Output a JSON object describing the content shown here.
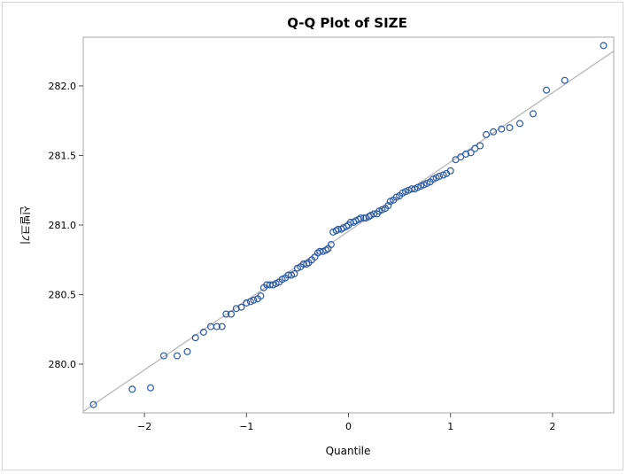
{
  "chart_data": {
    "type": "scatter",
    "title": "Q-Q Plot of SIZE",
    "xlabel": "Quantile",
    "ylabel": "신발크기",
    "xlim": [
      -2.6,
      2.6
    ],
    "ylim": [
      279.65,
      282.35
    ],
    "xticks": [
      -2,
      -1,
      0,
      1,
      2
    ],
    "xtick_labels": [
      "−2",
      "−1",
      "0",
      "1",
      "2"
    ],
    "yticks": [
      280.0,
      280.5,
      281.0,
      281.5,
      282.0
    ],
    "ytick_labels": [
      "280.0",
      "280.5",
      "281.0",
      "281.5",
      "282.0"
    ],
    "grid": false,
    "legend": "none",
    "marker_color": "#2a5aa8",
    "line_color": "#b8b8b8",
    "reference_line": {
      "x": [
        -2.6,
        2.6
      ],
      "y": [
        279.66,
        282.25
      ]
    },
    "points": [
      [
        -2.5,
        279.71
      ],
      [
        -2.12,
        279.82
      ],
      [
        -1.94,
        279.83
      ],
      [
        -1.81,
        280.06
      ],
      [
        -1.68,
        280.06
      ],
      [
        -1.58,
        280.09
      ],
      [
        -1.5,
        280.19
      ],
      [
        -1.42,
        280.23
      ],
      [
        -1.35,
        280.27
      ],
      [
        -1.29,
        280.27
      ],
      [
        -1.24,
        280.27
      ],
      [
        -1.2,
        280.36
      ],
      [
        -1.15,
        280.36
      ],
      [
        -1.1,
        280.4
      ],
      [
        -1.05,
        280.41
      ],
      [
        -1.0,
        280.44
      ],
      [
        -0.96,
        280.45
      ],
      [
        -0.93,
        280.46
      ],
      [
        -0.89,
        280.47
      ],
      [
        -0.86,
        280.49
      ],
      [
        -0.83,
        280.55
      ],
      [
        -0.8,
        280.57
      ],
      [
        -0.77,
        280.57
      ],
      [
        -0.74,
        280.57
      ],
      [
        -0.71,
        280.58
      ],
      [
        -0.68,
        280.59
      ],
      [
        -0.65,
        280.61
      ],
      [
        -0.62,
        280.62
      ],
      [
        -0.59,
        280.64
      ],
      [
        -0.56,
        280.64
      ],
      [
        -0.53,
        280.65
      ],
      [
        -0.5,
        280.69
      ],
      [
        -0.47,
        280.7
      ],
      [
        -0.44,
        280.72
      ],
      [
        -0.41,
        280.72
      ],
      [
        -0.39,
        280.73
      ],
      [
        -0.36,
        280.75
      ],
      [
        -0.33,
        280.77
      ],
      [
        -0.3,
        280.8
      ],
      [
        -0.28,
        280.81
      ],
      [
        -0.25,
        280.81
      ],
      [
        -0.22,
        280.82
      ],
      [
        -0.2,
        280.83
      ],
      [
        -0.17,
        280.86
      ],
      [
        -0.15,
        280.95
      ],
      [
        -0.12,
        280.96
      ],
      [
        -0.1,
        280.97
      ],
      [
        -0.07,
        280.97
      ],
      [
        -0.05,
        280.98
      ],
      [
        -0.02,
        280.99
      ],
      [
        0.0,
        281.0
      ],
      [
        0.02,
        281.02
      ],
      [
        0.05,
        281.02
      ],
      [
        0.07,
        281.03
      ],
      [
        0.1,
        281.04
      ],
      [
        0.12,
        281.05
      ],
      [
        0.15,
        281.05
      ],
      [
        0.17,
        281.05
      ],
      [
        0.2,
        281.06
      ],
      [
        0.22,
        281.07
      ],
      [
        0.25,
        281.08
      ],
      [
        0.28,
        281.08
      ],
      [
        0.3,
        281.1
      ],
      [
        0.33,
        281.11
      ],
      [
        0.36,
        281.12
      ],
      [
        0.39,
        281.14
      ],
      [
        0.41,
        281.17
      ],
      [
        0.44,
        281.18
      ],
      [
        0.47,
        281.2
      ],
      [
        0.5,
        281.21
      ],
      [
        0.53,
        281.23
      ],
      [
        0.56,
        281.24
      ],
      [
        0.59,
        281.25
      ],
      [
        0.62,
        281.26
      ],
      [
        0.65,
        281.26
      ],
      [
        0.68,
        281.27
      ],
      [
        0.71,
        281.28
      ],
      [
        0.74,
        281.29
      ],
      [
        0.77,
        281.3
      ],
      [
        0.8,
        281.31
      ],
      [
        0.83,
        281.33
      ],
      [
        0.86,
        281.34
      ],
      [
        0.89,
        281.35
      ],
      [
        0.93,
        281.36
      ],
      [
        0.96,
        281.37
      ],
      [
        1.0,
        281.39
      ],
      [
        1.05,
        281.47
      ],
      [
        1.1,
        281.49
      ],
      [
        1.15,
        281.51
      ],
      [
        1.2,
        281.52
      ],
      [
        1.24,
        281.55
      ],
      [
        1.29,
        281.57
      ],
      [
        1.35,
        281.65
      ],
      [
        1.42,
        281.67
      ],
      [
        1.5,
        281.69
      ],
      [
        1.58,
        281.7
      ],
      [
        1.68,
        281.73
      ],
      [
        1.81,
        281.8
      ],
      [
        1.94,
        281.97
      ],
      [
        2.12,
        282.04
      ],
      [
        2.5,
        282.29
      ]
    ]
  }
}
